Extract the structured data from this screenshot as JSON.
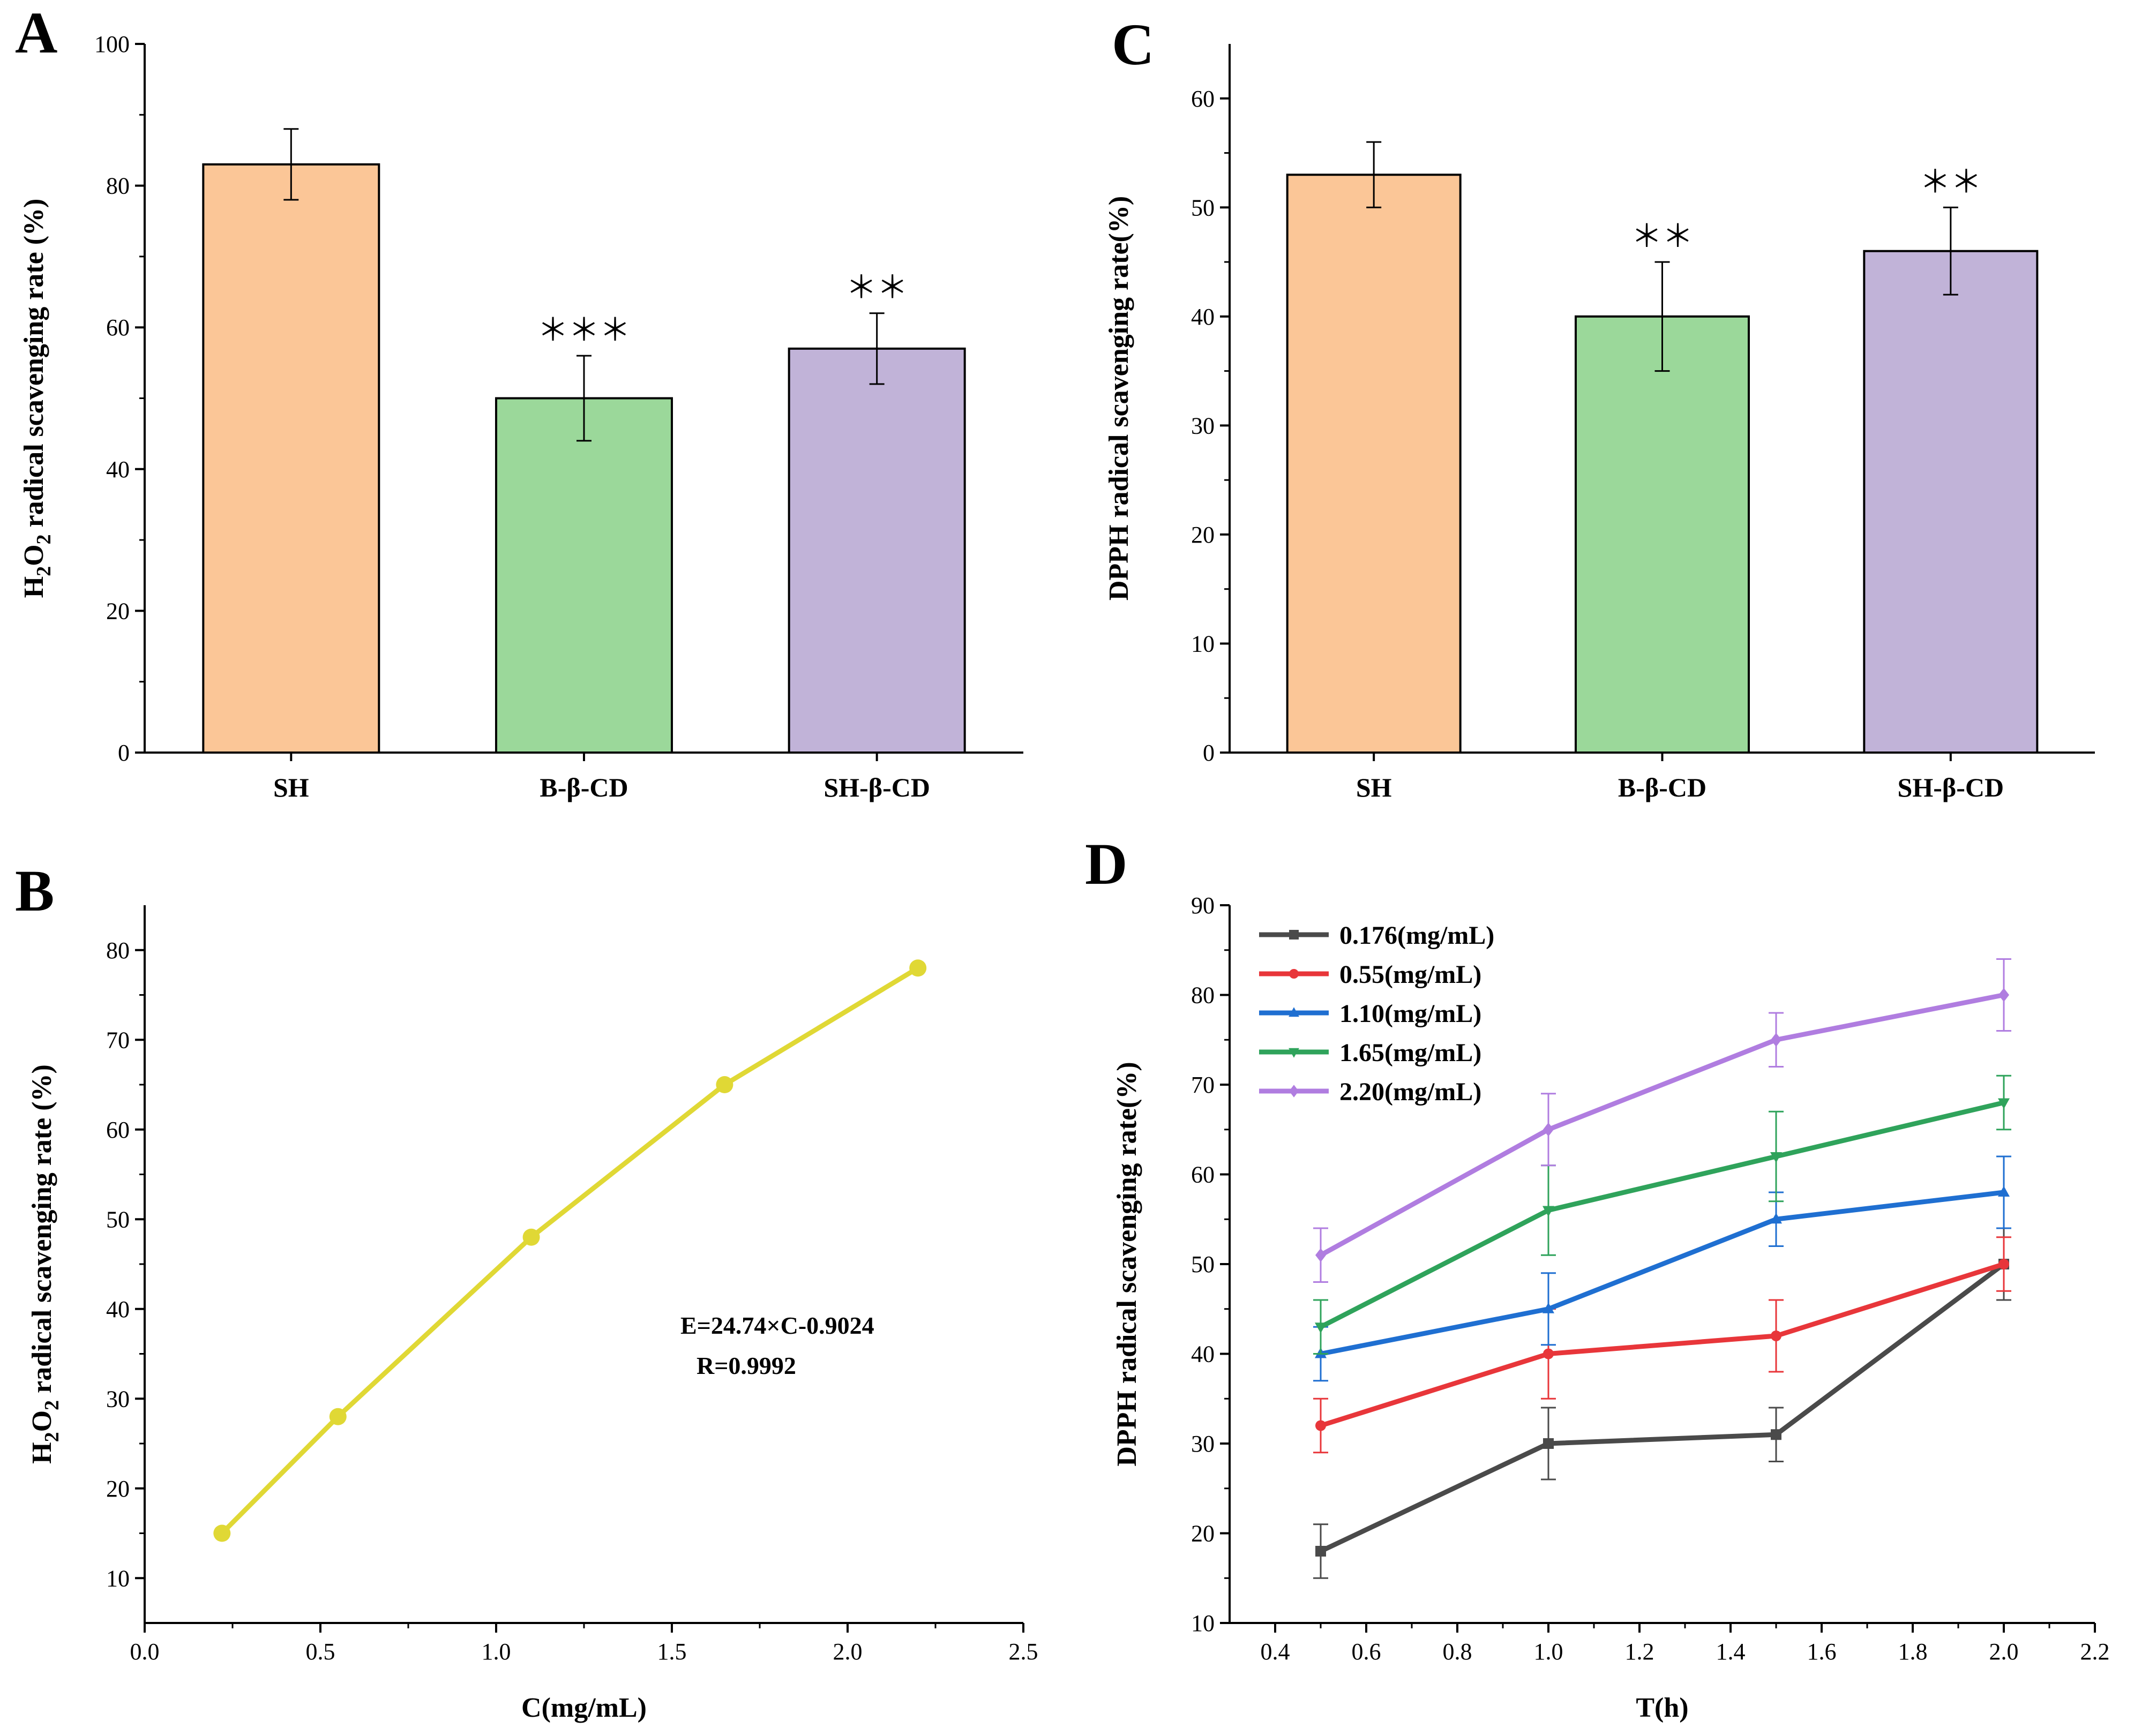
{
  "chart_data": [
    {
      "panel": "A",
      "type": "bar",
      "title": "",
      "xlabel": "",
      "ylabel_parts": [
        "H",
        "2",
        "O",
        "2",
        " radical scavenging rate (%)"
      ],
      "ylim": [
        0,
        100
      ],
      "yticks": [
        0,
        20,
        40,
        60,
        80,
        100
      ],
      "categories": [
        "SH",
        "B-β-CD",
        "SH-β-CD"
      ],
      "values": [
        83,
        50,
        57
      ],
      "errors": [
        5,
        6,
        5
      ],
      "annotations": [
        "",
        "＊＊＊",
        "＊＊"
      ],
      "colors": [
        "#fbc697",
        "#9bd89a",
        "#c1b3d8"
      ]
    },
    {
      "panel": "C",
      "type": "bar",
      "title": "",
      "xlabel": "",
      "ylabel": "DPPH radical scavenging rate(%)",
      "ylim": [
        0,
        65
      ],
      "yticks": [
        0,
        10,
        20,
        30,
        40,
        50,
        60
      ],
      "categories": [
        "SH",
        "B-β-CD",
        "SH-β-CD"
      ],
      "values": [
        53,
        40,
        46
      ],
      "errors": [
        3,
        5,
        4
      ],
      "annotations": [
        "",
        "＊＊",
        "＊＊"
      ],
      "colors": [
        "#fbc697",
        "#9bd89a",
        "#c1b3d8"
      ]
    },
    {
      "panel": "B",
      "type": "line",
      "title": "",
      "xlabel": "C(mg/mL)",
      "ylabel_parts": [
        "H",
        "2",
        "O",
        "2",
        " radical scavenging rate (%)"
      ],
      "xlim": [
        0,
        2.5
      ],
      "ylim": [
        5,
        85
      ],
      "xticks": [
        "0.0",
        "0.5",
        "1.0",
        "1.5",
        "2.0",
        "2.5"
      ],
      "yticks": [
        10,
        20,
        30,
        40,
        50,
        60,
        70,
        80
      ],
      "x": [
        0.22,
        0.55,
        1.1,
        1.65,
        2.2
      ],
      "y": [
        15,
        28,
        48,
        65,
        78
      ],
      "color": "#e0d835",
      "equation": "E=24.74×C-0.9024",
      "r_value": "R=0.9992"
    },
    {
      "panel": "D",
      "type": "line",
      "title": "",
      "xlabel": "T(h)",
      "ylabel": "DPPH radical scavenging rate(%)",
      "xlim": [
        0.3,
        2.2
      ],
      "ylim": [
        10,
        90
      ],
      "xticks": [
        "0.4",
        "0.6",
        "0.8",
        "1.0",
        "1.2",
        "1.4",
        "1.6",
        "1.8",
        "2.0",
        "2.2"
      ],
      "yticks": [
        10,
        20,
        30,
        40,
        50,
        60,
        70,
        80,
        90
      ],
      "x": [
        0.5,
        1.0,
        1.5,
        2.0
      ],
      "legend_position": "top-left",
      "series": [
        {
          "name": "0.176(mg/mL)",
          "values": [
            18,
            30,
            31,
            50
          ],
          "errors": [
            3,
            4,
            3,
            4
          ],
          "color": "#4a4a4a",
          "marker": "square"
        },
        {
          "name": "0.55(mg/mL)",
          "values": [
            32,
            40,
            42,
            50
          ],
          "errors": [
            3,
            5,
            4,
            3
          ],
          "color": "#e8363a",
          "marker": "circle"
        },
        {
          "name": "1.10(mg/mL)",
          "values": [
            40,
            45,
            55,
            58
          ],
          "errors": [
            3,
            4,
            3,
            4
          ],
          "color": "#1f6fd1",
          "marker": "triangle-up"
        },
        {
          "name": "1.65(mg/mL)",
          "values": [
            43,
            56,
            62,
            68
          ],
          "errors": [
            3,
            5,
            5,
            3
          ],
          "color": "#2fa35b",
          "marker": "triangle-down"
        },
        {
          "name": "2.20(mg/mL)",
          "values": [
            51,
            65,
            75,
            80
          ],
          "errors": [
            3,
            4,
            3,
            4
          ],
          "color": "#b07de0",
          "marker": "diamond"
        }
      ]
    }
  ]
}
